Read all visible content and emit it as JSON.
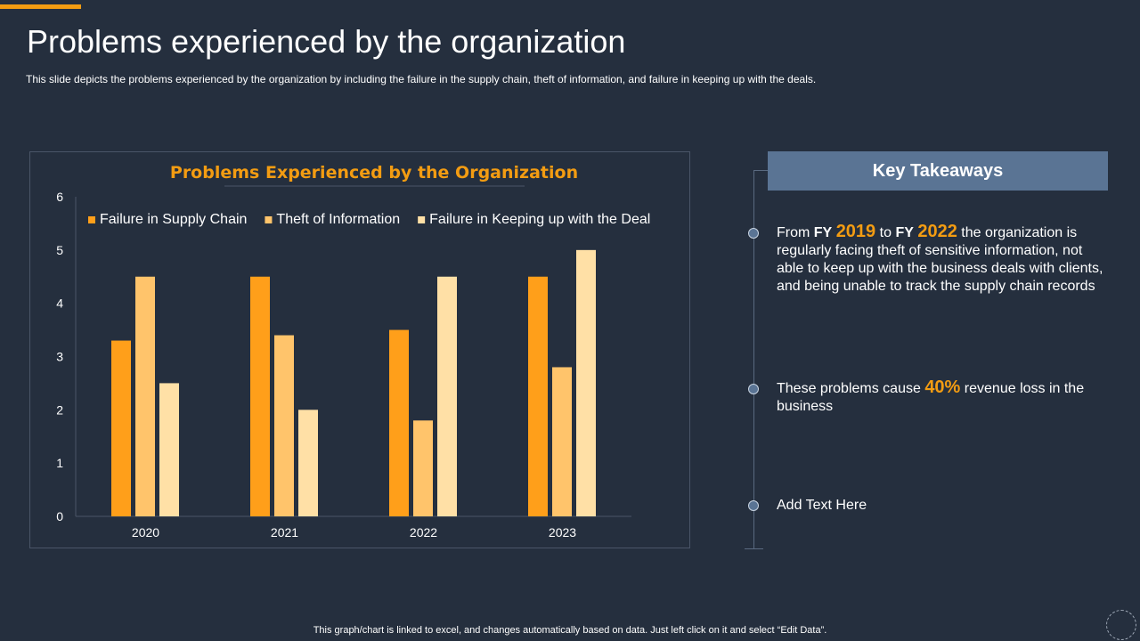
{
  "header": {
    "title": "Problems experienced by the organization",
    "subtitle": "This slide depicts the problems  experienced  by the organization  by including the failure  in the supply chain, theft of information,  and failure  in keeping up with the deals."
  },
  "colors": {
    "background": "#252f3e",
    "accent": "#f39c12",
    "series": [
      "#ff9f1a",
      "#ffc46b",
      "#ffe0a6"
    ],
    "takeaways_header_bg": "#5a7494"
  },
  "chart_data": {
    "type": "bar",
    "title": "Problems Experienced  by the Organization",
    "categories": [
      "2020",
      "2021",
      "2022",
      "2023"
    ],
    "series": [
      {
        "name": "Failure in Supply Chain",
        "values": [
          3.3,
          4.5,
          3.5,
          4.5
        ]
      },
      {
        "name": "Theft of Information",
        "values": [
          4.5,
          3.4,
          1.8,
          2.8
        ]
      },
      {
        "name": "Failure in Keeping up with the Deal",
        "values": [
          2.5,
          2.0,
          4.5,
          5.0
        ]
      }
    ],
    "ylim": [
      0,
      6
    ],
    "yticks": [
      "0",
      "1",
      "2",
      "3",
      "4",
      "5",
      "6"
    ],
    "legend": "top",
    "grid": false
  },
  "takeaways": {
    "header": "Key Takeaways",
    "item1": {
      "from": "From",
      "fy1": "FY",
      "year1": "2019",
      "to": "to",
      "fy2": "FY",
      "year2": "2022",
      "rest": "the organization is regularly facing theft of sensitive information, not able to keep up with the business deals with clients, and being unable to track the supply chain records"
    },
    "item2": {
      "pre": "These problems cause",
      "percent": "40%",
      "post": "revenue loss in the business"
    },
    "item3": {
      "text": "Add Text Here"
    }
  },
  "footer": {
    "note": "This graph/chart is linked to excel,  and changes automatically based on data. Just left click on it and select “Edit Data”."
  }
}
